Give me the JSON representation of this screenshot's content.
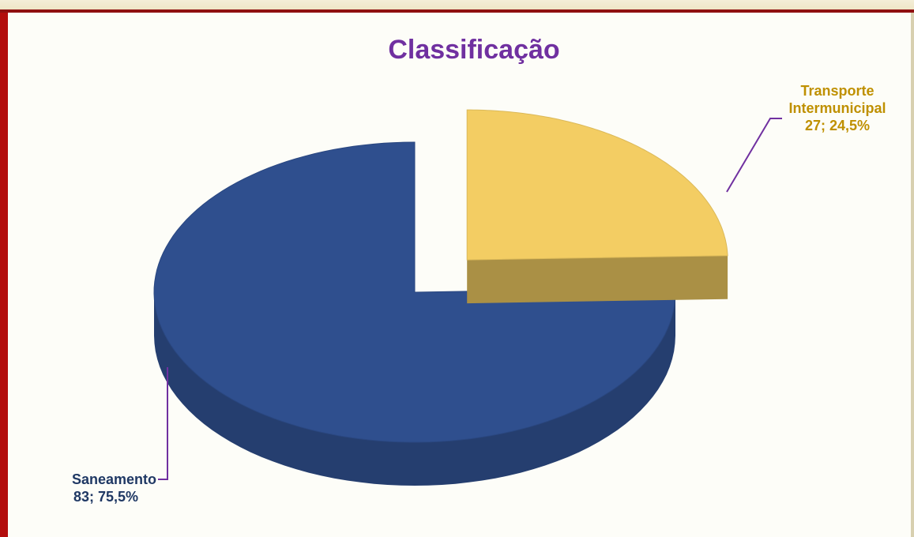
{
  "chart_data": {
    "type": "pie3d",
    "title": "Classificação",
    "categories": [
      "Transporte Intermunicipal",
      "Saneamento"
    ],
    "values": [
      27,
      83
    ],
    "value_labels": [
      "27; 24,5%",
      "83; 75,5%"
    ],
    "colors": [
      "#f3cd63",
      "#2f4f8e"
    ],
    "label_colors": [
      "#bf9000",
      "#1f3864"
    ]
  }
}
